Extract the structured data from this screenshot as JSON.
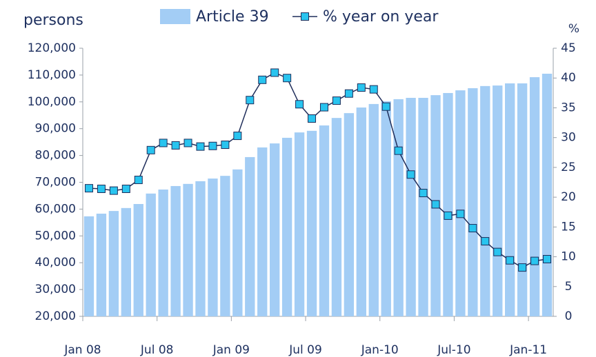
{
  "chart_data": {
    "type": "bar_line",
    "y_label": "persons",
    "y2_label": "%",
    "categories": [
      "Jan 08",
      null,
      null,
      null,
      null,
      null,
      "Jul 08",
      null,
      null,
      null,
      null,
      null,
      "Jan 09",
      null,
      null,
      null,
      null,
      null,
      "Jul 09",
      null,
      null,
      null,
      null,
      null,
      "Jan-10",
      null,
      null,
      null,
      null,
      null,
      "Jul-10",
      null,
      null,
      null,
      null,
      null,
      "Jan-11",
      null
    ],
    "series": [
      {
        "name": "Article 39",
        "type": "bar",
        "color": "#a3cdf5",
        "values": [
          57300,
          58300,
          59300,
          60400,
          61900,
          65800,
          67300,
          68600,
          69400,
          70400,
          71400,
          72400,
          74800,
          79400,
          83000,
          84500,
          86600,
          88600,
          89200,
          91200,
          94000,
          95800,
          97900,
          99200,
          100200,
          101000,
          101500,
          101500,
          102500,
          103300,
          104300,
          105100,
          105900,
          106100,
          106900,
          106900,
          109200,
          110500
        ]
      },
      {
        "name": "% year on year",
        "type": "line",
        "axis": "y2",
        "color": "#1f2d5a",
        "marker_color": "#29c4ef",
        "values": [
          21.5,
          21.4,
          21.1,
          21.4,
          22.9,
          27.9,
          29.1,
          28.7,
          29.1,
          28.5,
          28.6,
          28.8,
          30.3,
          36.3,
          39.7,
          40.9,
          40.0,
          35.6,
          33.2,
          35.1,
          36.2,
          37.4,
          38.4,
          38.1,
          35.2,
          27.8,
          23.8,
          20.7,
          18.8,
          16.9,
          17.2,
          14.8,
          12.6,
          10.8,
          9.4,
          8.2,
          9.3,
          9.6
        ]
      }
    ],
    "ylim": [
      20000,
      120000
    ],
    "yticks": [
      {
        "value": 20000,
        "label": "20,000"
      },
      {
        "value": 30000,
        "label": "30,000"
      },
      {
        "value": 40000,
        "label": "40,000"
      },
      {
        "value": 50000,
        "label": "50,000"
      },
      {
        "value": 60000,
        "label": "60,000"
      },
      {
        "value": 70000,
        "label": "70,000"
      },
      {
        "value": 80000,
        "label": "80,000"
      },
      {
        "value": 90000,
        "label": "90,000"
      },
      {
        "value": 100000,
        "label": "100,000"
      },
      {
        "value": 110000,
        "label": "110,000"
      },
      {
        "value": 120000,
        "label": "120,000"
      }
    ],
    "y2lim": [
      0,
      45
    ],
    "y2ticks": [
      0,
      5,
      10,
      15,
      20,
      25,
      30,
      35,
      40,
      45
    ],
    "grid": false
  }
}
